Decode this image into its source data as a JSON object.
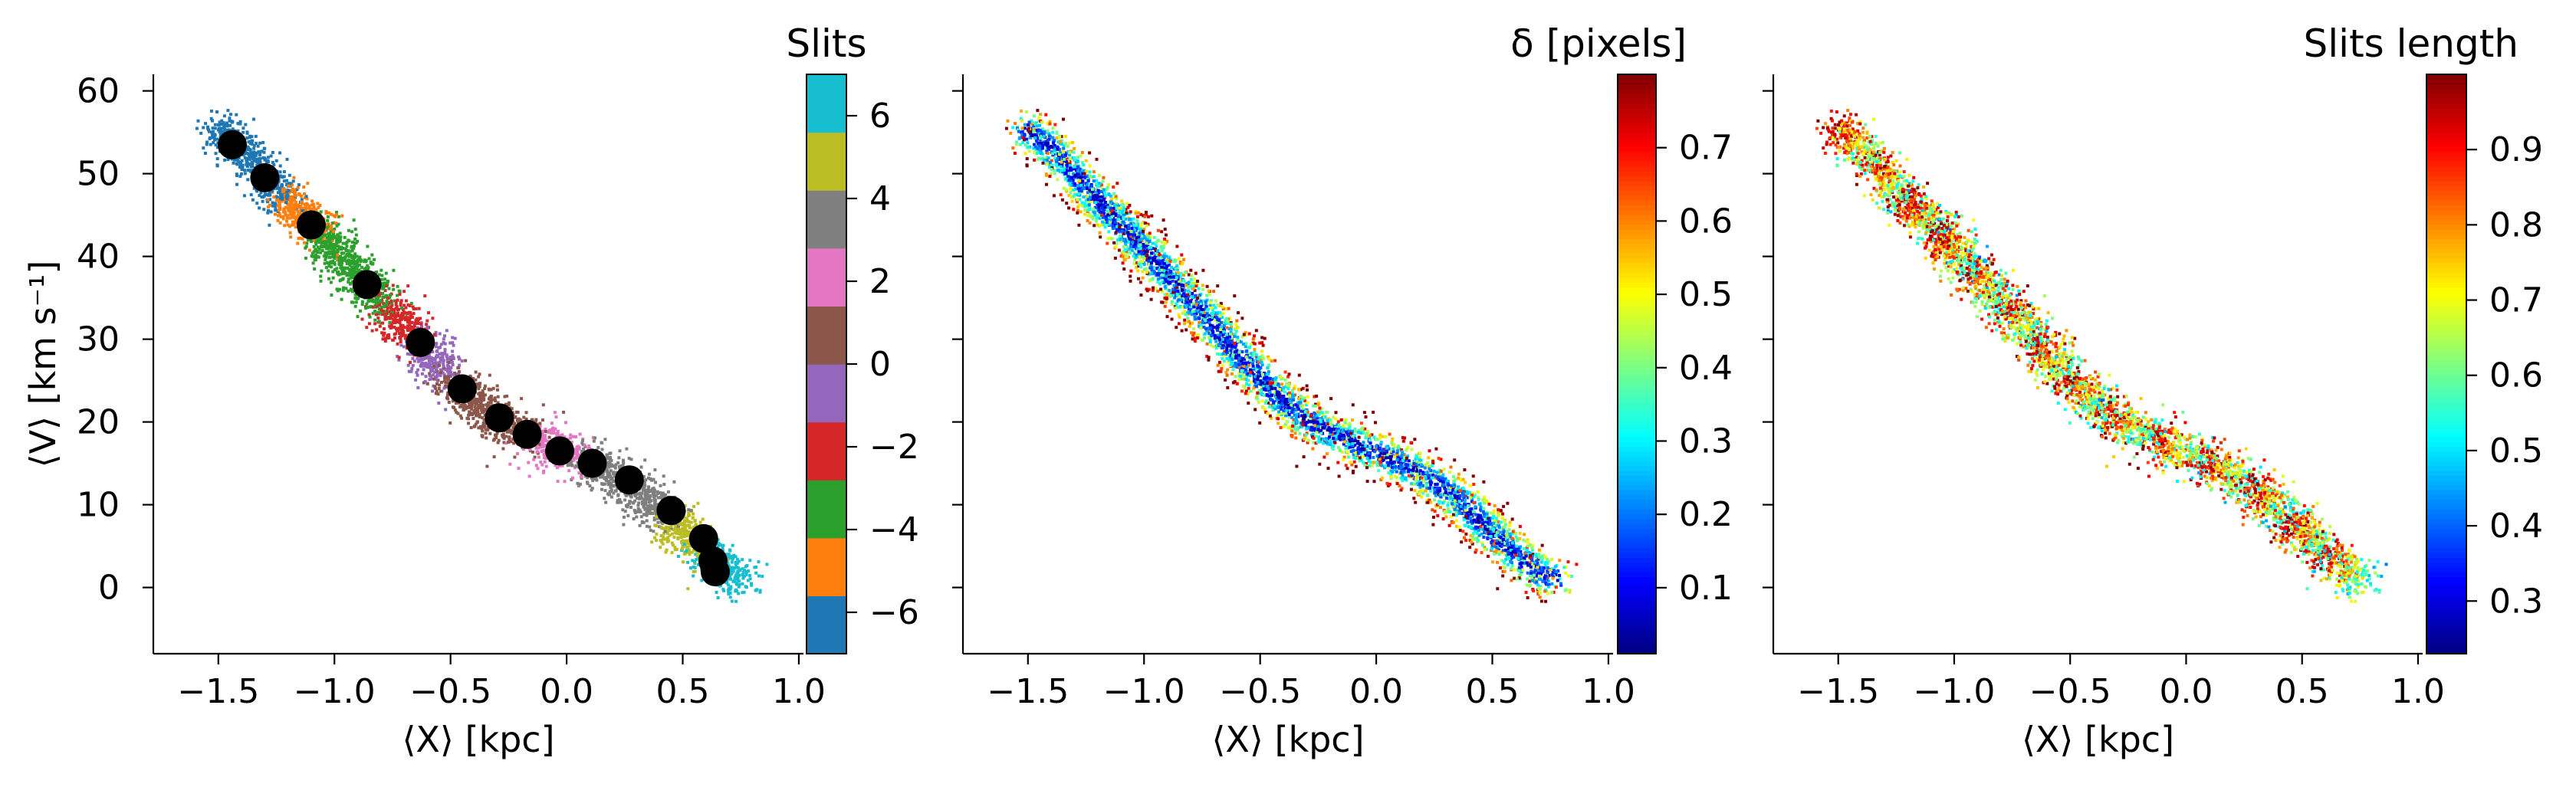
{
  "chart_data": [
    {
      "type": "scatter",
      "xlabel": "⟨X⟩ [kpc]",
      "ylabel": "⟨V⟩ [km s⁻¹]",
      "xlim": [
        -1.78,
        1.02
      ],
      "ylim": [
        -8,
        62
      ],
      "xticks": [
        -1.5,
        -1.0,
        -0.5,
        0.0,
        0.5,
        1.0
      ],
      "xtick_labels": [
        "−1.5",
        "−1.0",
        "−0.5",
        "0.0",
        "0.5",
        "1.0"
      ],
      "yticks": [
        0,
        10,
        20,
        30,
        40,
        50,
        60
      ],
      "ytick_labels": [
        "0",
        "10",
        "20",
        "30",
        "40",
        "50",
        "60"
      ],
      "points_color_by": "slit index",
      "slit_colors": [
        "#1f77b4",
        "#ff7f0e",
        "#2ca02c",
        "#d62728",
        "#9467bd",
        "#8c564b",
        "#e377c2",
        "#7f7f7f",
        "#bcbd22",
        "#17becf"
      ],
      "trace": {
        "x": [
          -1.52,
          -1.42,
          -1.32,
          -1.22,
          -1.12,
          -1.02,
          -0.92,
          -0.84,
          -0.74,
          -0.64,
          -0.54,
          -0.44,
          -0.34,
          -0.22,
          -0.1,
          0.02,
          0.14,
          0.26,
          0.38,
          0.48,
          0.58,
          0.66,
          0.72,
          0.78
        ],
        "y": [
          55.5,
          53.5,
          50.5,
          47.5,
          44.5,
          41.5,
          38.5,
          36.0,
          33.0,
          29.5,
          26.5,
          23.5,
          21.0,
          19.0,
          17.5,
          16.0,
          14.5,
          12.5,
          10.0,
          7.0,
          4.5,
          2.5,
          1.5,
          1.0
        ]
      },
      "slit_means": {
        "x": [
          -1.44,
          -1.3,
          -1.1,
          -0.86,
          -0.63,
          -0.45,
          -0.29,
          -0.17,
          -0.03,
          0.11,
          0.27,
          0.45,
          0.59,
          0.63,
          0.64
        ],
        "y": [
          53.5,
          49.5,
          43.8,
          36.6,
          29.6,
          24.0,
          20.5,
          18.5,
          16.5,
          15.0,
          13.0,
          9.3,
          5.9,
          3.2,
          1.9
        ]
      },
      "colorbar": {
        "title": "Slits",
        "range": [
          -7,
          7
        ],
        "ticks": [
          -6,
          -4,
          -2,
          0,
          2,
          4,
          6
        ],
        "tick_labels": [
          "−6",
          "−4",
          "−2",
          "0",
          "2",
          "4",
          "6"
        ]
      }
    },
    {
      "type": "scatter",
      "xlabel": "⟨X⟩ [kpc]",
      "xlim": [
        -1.78,
        1.02
      ],
      "ylim": [
        -8,
        62
      ],
      "xticks": [
        -1.5,
        -1.0,
        -0.5,
        0.0,
        0.5,
        1.0
      ],
      "xtick_labels": [
        "−1.5",
        "−1.0",
        "−0.5",
        "0.0",
        "0.5",
        "1.0"
      ],
      "yticks": [
        0,
        10,
        20,
        30,
        40,
        50,
        60
      ],
      "points_color_by": "δ [pixels] (low near the centre line, high at the edges)",
      "colormap": "jet",
      "colorbar": {
        "title": "δ [pixels]",
        "range": [
          0.01,
          0.8
        ],
        "ticks": [
          0.1,
          0.2,
          0.3,
          0.4,
          0.5,
          0.6,
          0.7
        ],
        "tick_labels": [
          "0.1",
          "0.2",
          "0.3",
          "0.4",
          "0.5",
          "0.6",
          "0.7"
        ]
      }
    },
    {
      "type": "scatter",
      "xlabel": "⟨X⟩ [kpc]",
      "xlim": [
        -1.78,
        1.02
      ],
      "ylim": [
        -8,
        62
      ],
      "xticks": [
        -1.5,
        -1.0,
        -0.5,
        0.0,
        0.5,
        1.0
      ],
      "xtick_labels": [
        "−1.5",
        "−1.0",
        "−0.5",
        "0.0",
        "0.5",
        "1.0"
      ],
      "yticks": [
        0,
        10,
        20,
        30,
        40,
        50,
        60
      ],
      "points_color_by": "slits length (high at the upper part of each slit)",
      "colormap": "jet",
      "colorbar": {
        "title": "Slits length",
        "range": [
          0.23,
          1.0
        ],
        "ticks": [
          0.3,
          0.4,
          0.5,
          0.6,
          0.7,
          0.8,
          0.9
        ],
        "tick_labels": [
          "0.3",
          "0.4",
          "0.5",
          "0.6",
          "0.7",
          "0.8",
          "0.9"
        ]
      }
    }
  ]
}
